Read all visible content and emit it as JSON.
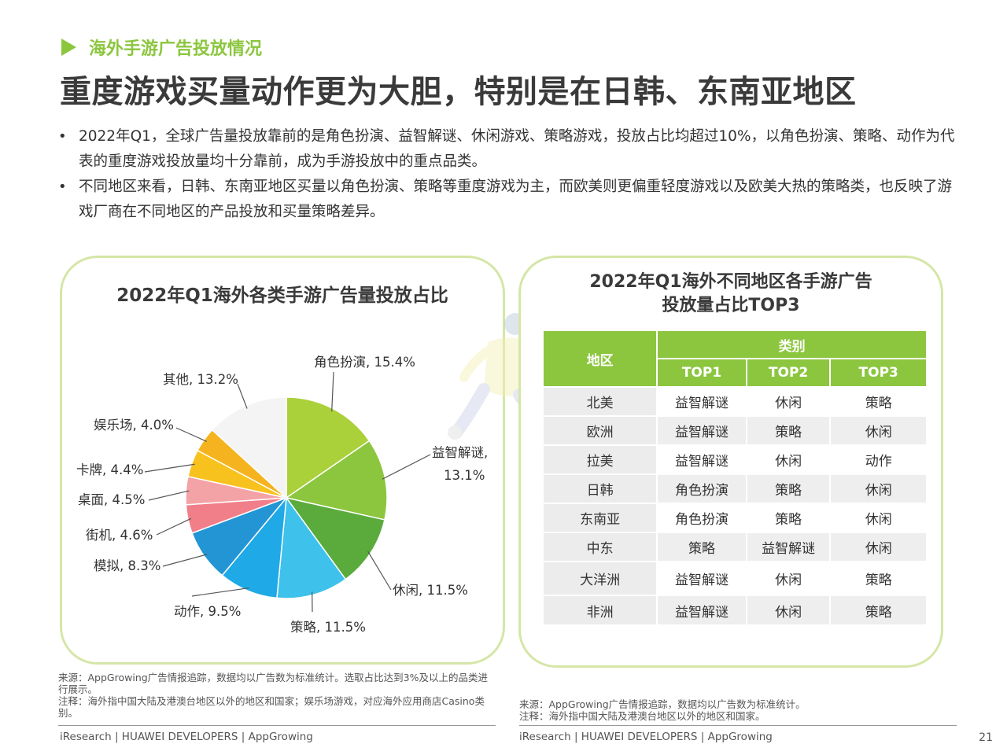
{
  "header": {
    "section_title": "海外手游广告投放情况",
    "headline": "重度游戏买量动作更为大胆，特别是在日韩、东南亚地区"
  },
  "bullets": [
    "2022年Q1，全球广告量投放靠前的是角色扮演、益智解谜、休闲游戏、策略游戏，投放占比均超过10%，以角色扮演、策略、动作为代表的重度游戏投放量均十分靠前，成为手游投放中的重点品类。",
    "不同地区来看，日韩、东南亚地区买量以角色扮演、策略等重度游戏为主，而欧美则更偏重轻度游戏以及欧美大热的策略类，也反映了游戏厂商在不同地区的产品投放和买量策略差异。"
  ],
  "chart_data": {
    "type": "pie",
    "title": "2022年Q1海外各类手游广告量投放占比",
    "slices": [
      {
        "label": "角色扮演",
        "value": 15.4,
        "display": "角色扮演, 15.4%",
        "color": "#aad03a"
      },
      {
        "label": "益智解谜",
        "value": 13.1,
        "display": "益智解谜,",
        "display2": "13.1%",
        "color": "#8cc63f"
      },
      {
        "label": "休闲",
        "value": 11.5,
        "display": "休闲, 11.5%",
        "color": "#5aab3c"
      },
      {
        "label": "策略",
        "value": 11.5,
        "display": "策略, 11.5%",
        "color": "#3ec1ea"
      },
      {
        "label": "动作",
        "value": 9.5,
        "display": "动作, 9.5%",
        "color": "#1fa9e6"
      },
      {
        "label": "模拟",
        "value": 8.3,
        "display": "模拟, 8.3%",
        "color": "#2395d4"
      },
      {
        "label": "街机",
        "value": 4.6,
        "display": "街机, 4.6%",
        "color": "#f07f8a"
      },
      {
        "label": "桌面",
        "value": 4.5,
        "display": "桌面, 4.5%",
        "color": "#f3a2a6"
      },
      {
        "label": "卡牌",
        "value": 4.4,
        "display": "卡牌, 4.4%",
        "color": "#f8c21e"
      },
      {
        "label": "娱乐场",
        "value": 4.0,
        "display": "娱乐场, 4.0%",
        "color": "#f5b41f"
      },
      {
        "label": "其他",
        "value": 13.2,
        "display": "其他, 13.2%",
        "color": "#f4f4f4"
      }
    ]
  },
  "table": {
    "title_line1": "2022年Q1海外不同地区各手游广告",
    "title_line2": "投放量占比TOP3",
    "header_region": "地区",
    "header_category": "类别",
    "header_top": [
      "TOP1",
      "TOP2",
      "TOP3"
    ],
    "rows": [
      {
        "region": "北美",
        "top": [
          "益智解谜",
          "休闲",
          "策略"
        ]
      },
      {
        "region": "欧洲",
        "top": [
          "益智解谜",
          "策略",
          "休闲"
        ]
      },
      {
        "region": "拉美",
        "top": [
          "益智解谜",
          "休闲",
          "动作"
        ]
      },
      {
        "region": "日韩",
        "top": [
          "角色扮演",
          "策略",
          "休闲"
        ]
      },
      {
        "region": "东南亚",
        "top": [
          "角色扮演",
          "策略",
          "休闲"
        ]
      },
      {
        "region": "中东",
        "top": [
          "策略",
          "益智解谜",
          "休闲"
        ]
      },
      {
        "region": "大洋洲",
        "top": [
          "益智解谜",
          "休闲",
          "策略"
        ]
      },
      {
        "region": "非洲",
        "top": [
          "益智解谜",
          "休闲",
          "策略"
        ]
      }
    ]
  },
  "notes": {
    "left_source": "来源：AppGrowing广告情报追踪，数据均以广告数为标准统计。选取占比达到3%及以上的品类进行展示。",
    "left_note": "注释：海外指中国大陆及港澳台地区以外的地区和国家；娱乐场游戏，对应海外应用商店Casino类别。",
    "right_source": "来源：AppGrowing广告情报追踪，数据均以广告数为标准统计。",
    "right_note": "注释：海外指中国大陆及港澳台地区以外的地区和国家。"
  },
  "footer": {
    "left": "iResearch | HUAWEI DEVELOPERS | AppGrowing",
    "right": "iResearch | HUAWEI DEVELOPERS | AppGrowing",
    "page_number": "21"
  }
}
